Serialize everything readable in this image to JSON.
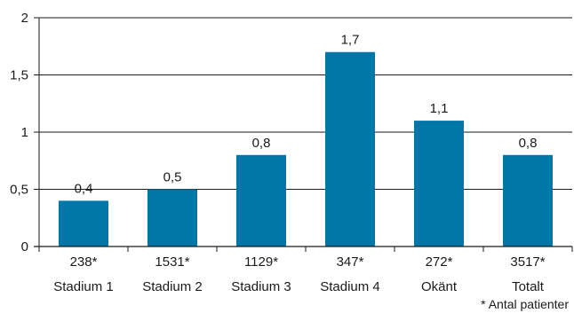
{
  "chart_data": {
    "type": "bar",
    "title": "",
    "xlabel": "",
    "ylabel": "",
    "categories": [
      "Stadium 1",
      "Stadium 2",
      "Stadium 3",
      "Stadium 4",
      "Okänt",
      "Totalt"
    ],
    "patient_counts": [
      "238*",
      "1531*",
      "1129*",
      "347*",
      "272*",
      "3517*"
    ],
    "values": [
      0.4,
      0.5,
      0.8,
      1.7,
      1.1,
      0.8
    ],
    "value_labels": [
      "0,4",
      "0,5",
      "0,8",
      "1,7",
      "1,1",
      "0,8"
    ],
    "ylim": [
      0,
      2
    ],
    "yticks": [
      0,
      0.5,
      1,
      1.5,
      2
    ],
    "ytick_labels": [
      "0",
      "0,5",
      "1",
      "1,5",
      "2"
    ],
    "grid": true,
    "bar_color": "#0077a6",
    "footnote": "* Antal patienter"
  }
}
